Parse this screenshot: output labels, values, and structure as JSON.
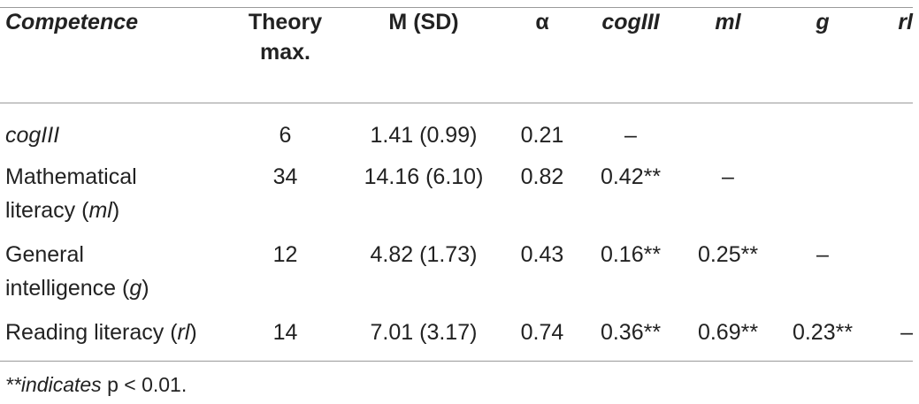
{
  "table": {
    "headers": {
      "competence": "Competence",
      "theory_max": "Theory max.",
      "m_sd": "M (SD)",
      "alpha": "α",
      "cogIII": "cogIII",
      "ml": "ml",
      "g": "g",
      "rl": "rl"
    },
    "rows": [
      {
        "label": "cogIII",
        "theory_max": "6",
        "m_sd": "1.41 (0.99)",
        "alpha": "0.21",
        "cogIII": "–",
        "ml": "",
        "g": "",
        "rl": ""
      },
      {
        "label_line1": "Mathematical",
        "label_line2_pre": "literacy (",
        "label_line2_abbr": "ml",
        "label_line2_post": ")",
        "theory_max": "34",
        "m_sd": "14.16 (6.10)",
        "alpha": "0.82",
        "cogIII": "0.42**",
        "ml": "–",
        "g": "",
        "rl": ""
      },
      {
        "label_line1": "General",
        "label_line2_pre": "intelligence (",
        "label_line2_abbr": "g",
        "label_line2_post": ")",
        "theory_max": "12",
        "m_sd": "4.82 (1.73)",
        "alpha": "0.43",
        "cogIII": "0.16**",
        "ml": "0.25**",
        "g": "–",
        "rl": ""
      },
      {
        "label_pre": "Reading literacy (",
        "label_abbr": "rl",
        "label_post": ")",
        "theory_max": "14",
        "m_sd": "7.01 (3.17)",
        "alpha": "0.74",
        "cogIII": "0.36**",
        "ml": "0.69**",
        "g": "0.23**",
        "rl": "–"
      }
    ]
  },
  "footnote": {
    "italic_part": "**indicates",
    "rest": " p < 0.01."
  }
}
